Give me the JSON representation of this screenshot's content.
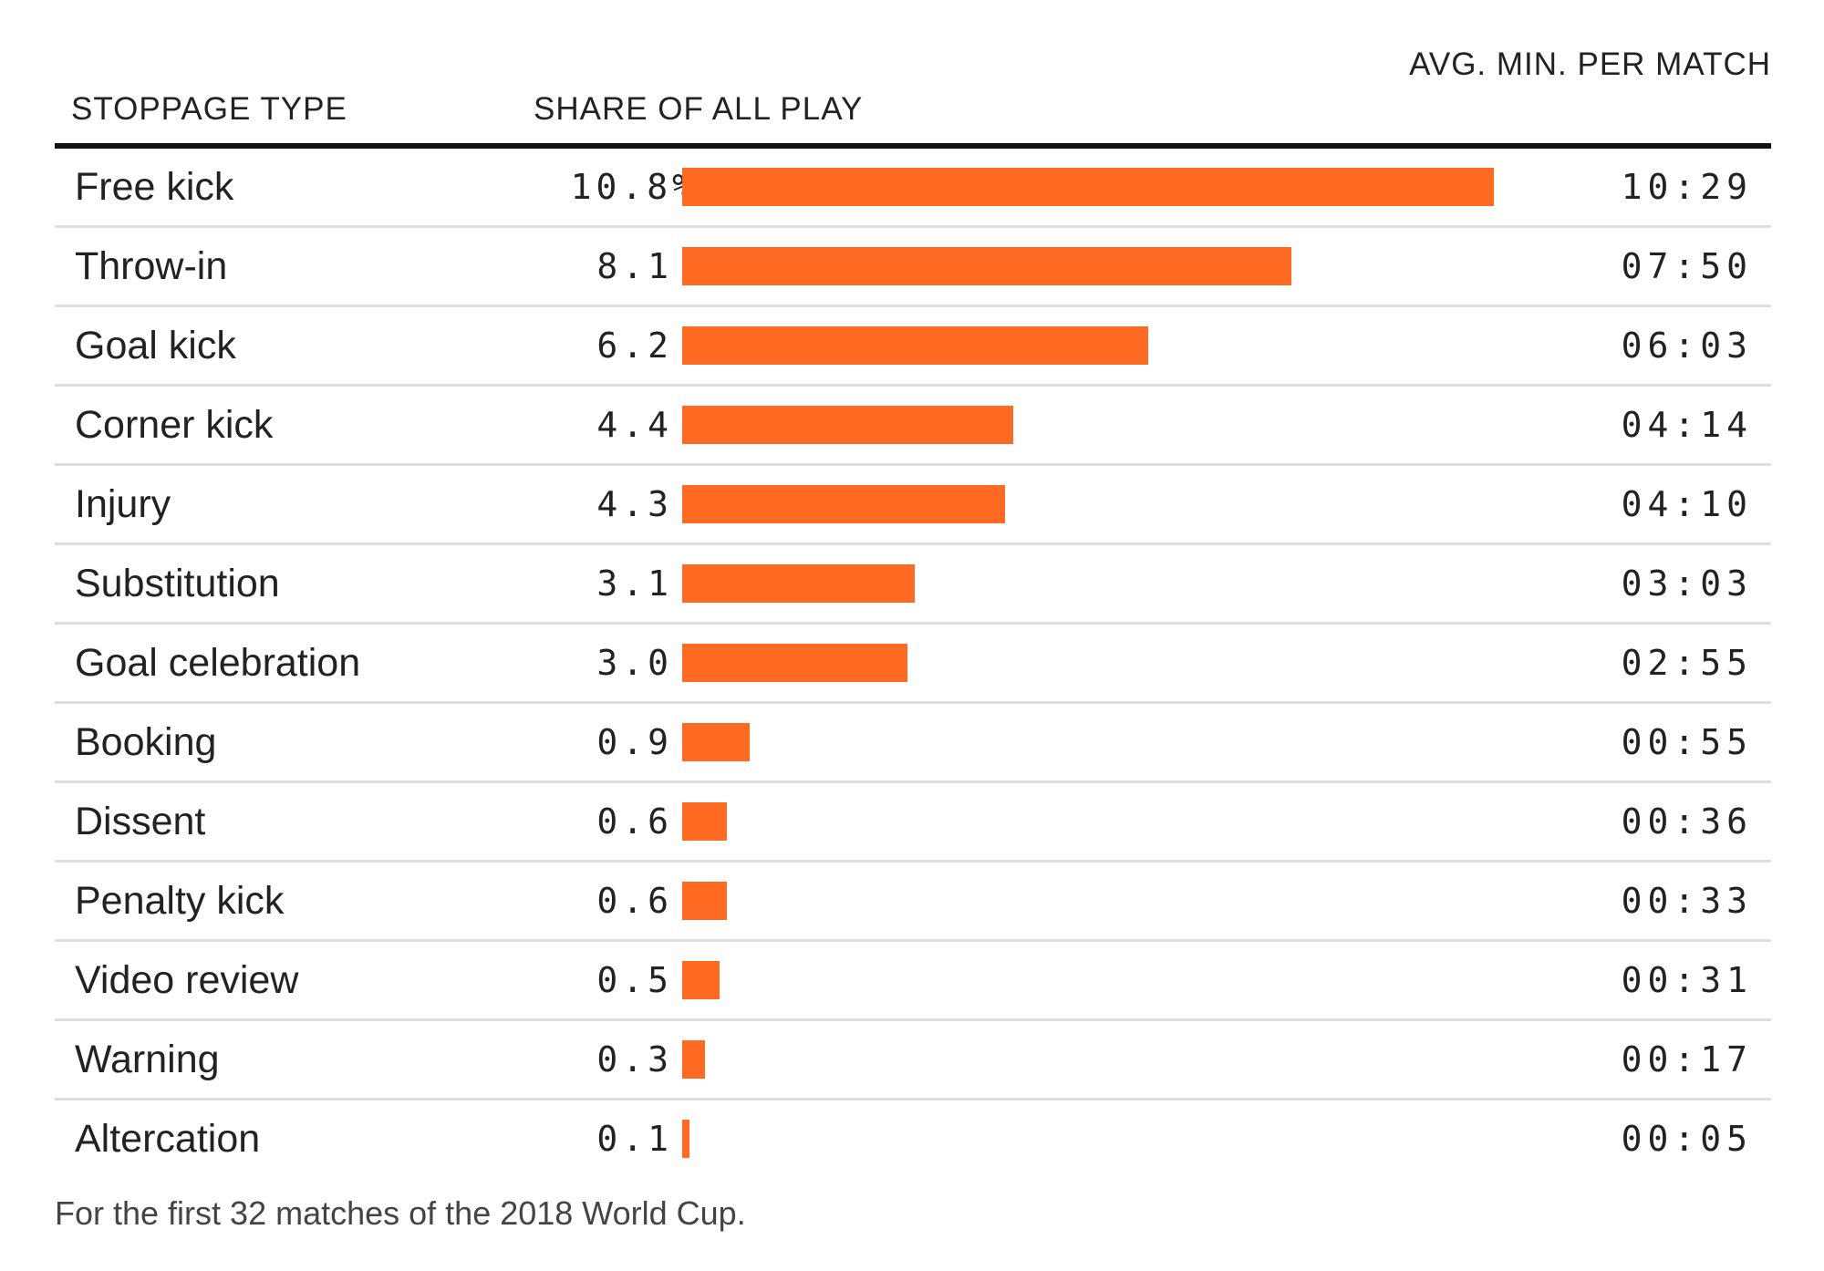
{
  "chart_data": {
    "type": "bar",
    "orientation": "horizontal",
    "columns": {
      "type": "STOPPAGE TYPE",
      "share": "SHARE OF ALL PLAY",
      "avg": "AVG. MIN. PER MATCH"
    },
    "categories": [
      "Free kick",
      "Throw-in",
      "Goal kick",
      "Corner kick",
      "Injury",
      "Substitution",
      "Goal celebration",
      "Booking",
      "Dissent",
      "Penalty kick",
      "Video review",
      "Warning",
      "Altercation"
    ],
    "values": [
      10.8,
      8.1,
      6.2,
      4.4,
      4.3,
      3.1,
      3.0,
      0.9,
      0.6,
      0.6,
      0.5,
      0.3,
      0.1
    ],
    "value_labels": [
      "10.8",
      "8.1",
      "6.2",
      "4.4",
      "4.3",
      "3.1",
      "3.0",
      "0.9",
      "0.6",
      "0.6",
      "0.5",
      "0.3",
      "0.1"
    ],
    "value_unit": "%",
    "avg_min_per_match": [
      "10:29",
      "07:50",
      "06:03",
      "04:14",
      "04:10",
      "03:03",
      "02:55",
      "00:55",
      "00:36",
      "00:33",
      "00:31",
      "00:17",
      "00:05"
    ],
    "bar_color": "#ff6a23",
    "xlim": [
      0,
      10.8
    ],
    "footnote": "For the first 32 matches of the 2018 World Cup."
  }
}
